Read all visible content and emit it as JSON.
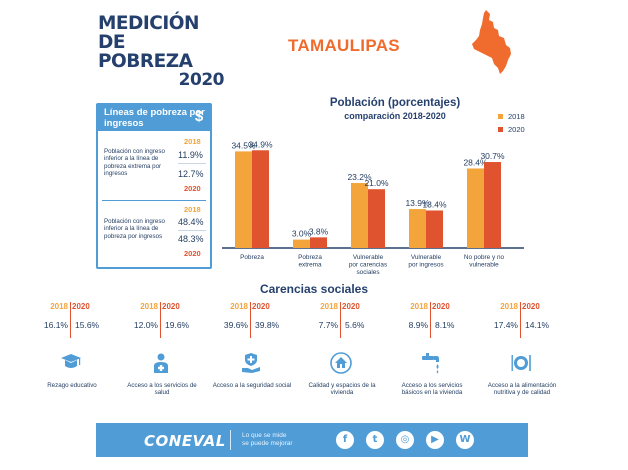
{
  "header": {
    "title_line1": "MEDICIÓN",
    "title_line2": "DE POBREZA",
    "title_year": "2020",
    "state": "TAMAULIPAS"
  },
  "colors": {
    "y2018": "#f3a43a",
    "y2020": "#e0532f",
    "navy": "#26406e",
    "blue": "#4f9cd6"
  },
  "poverty_lines": {
    "title": "Líneas de pobreza por ingresos",
    "icon": "dollar-icon",
    "items": [
      {
        "desc": "Población con ingreso inferior a la línea de pobreza extrema por ingresos",
        "y2018": "2018",
        "v2018": "11.9%",
        "v2020": "12.7%",
        "y2020": "2020"
      },
      {
        "desc": "Población con ingreso inferior a la línea de pobreza por ingresos",
        "y2018": "2018",
        "v2018": "48.4%",
        "v2020": "48.3%",
        "y2020": "2020"
      }
    ]
  },
  "chart_data": {
    "type": "bar",
    "title": "Población (porcentajes)",
    "subtitle": "comparación 2018-2020",
    "categories": [
      "Pobreza",
      "Pobreza extrema",
      "Vulnerable por carencias sociales",
      "Vulnerable por ingresos",
      "No pobre y no vulnerable"
    ],
    "series": [
      {
        "name": "2018",
        "values": [
          34.5,
          3.0,
          23.2,
          13.9,
          28.4
        ]
      },
      {
        "name": "2020",
        "values": [
          34.9,
          3.8,
          21.0,
          13.4,
          30.7
        ]
      }
    ],
    "labels_2018": [
      "34.5%",
      "3.0%",
      "23.2%",
      "13.9%",
      "28.4%"
    ],
    "labels_2020": [
      "34.9%",
      "3.8%",
      "21.0%",
      "13.4%",
      "30.7%"
    ],
    "ylim": [
      0,
      35
    ],
    "legend": "top-right",
    "grid": false
  },
  "carencias": {
    "title": "Carencias sociales",
    "y2018": "2018",
    "y2020": "2020",
    "items": [
      {
        "v2018": "16.1%",
        "v2020": "15.6%",
        "label": "Rezago educativo",
        "icon": "graduation-cap-icon"
      },
      {
        "v2018": "12.0%",
        "v2020": "19.6%",
        "label": "Acceso a los servicios de salud",
        "icon": "doctor-icon"
      },
      {
        "v2018": "39.6%",
        "v2020": "39.8%",
        "label": "Acceso a la seguridad social",
        "icon": "security-hand-icon"
      },
      {
        "v2018": "7.7%",
        "v2020": "5.6%",
        "label": "Calidad y espacios de la vivienda",
        "icon": "house-icon"
      },
      {
        "v2018": "8.9%",
        "v2020": "8.1%",
        "label": "Acceso a los servicios básicos en la vivienda",
        "icon": "faucet-icon"
      },
      {
        "v2018": "17.4%",
        "v2020": "14.1%",
        "label": "Acceso a la alimentación nutritiva y de calidad",
        "icon": "plate-icon"
      }
    ]
  },
  "footer": {
    "logo": "CONEVAL",
    "slogan_line1": "Lo que se mide",
    "slogan_line2": "se puede mejorar",
    "social": [
      {
        "name": "facebook-icon",
        "glyph": "f"
      },
      {
        "name": "twitter-icon",
        "glyph": "t"
      },
      {
        "name": "instagram-icon",
        "glyph": "◎"
      },
      {
        "name": "youtube-icon",
        "glyph": "▶"
      },
      {
        "name": "wordpress-icon",
        "glyph": "W"
      }
    ]
  }
}
